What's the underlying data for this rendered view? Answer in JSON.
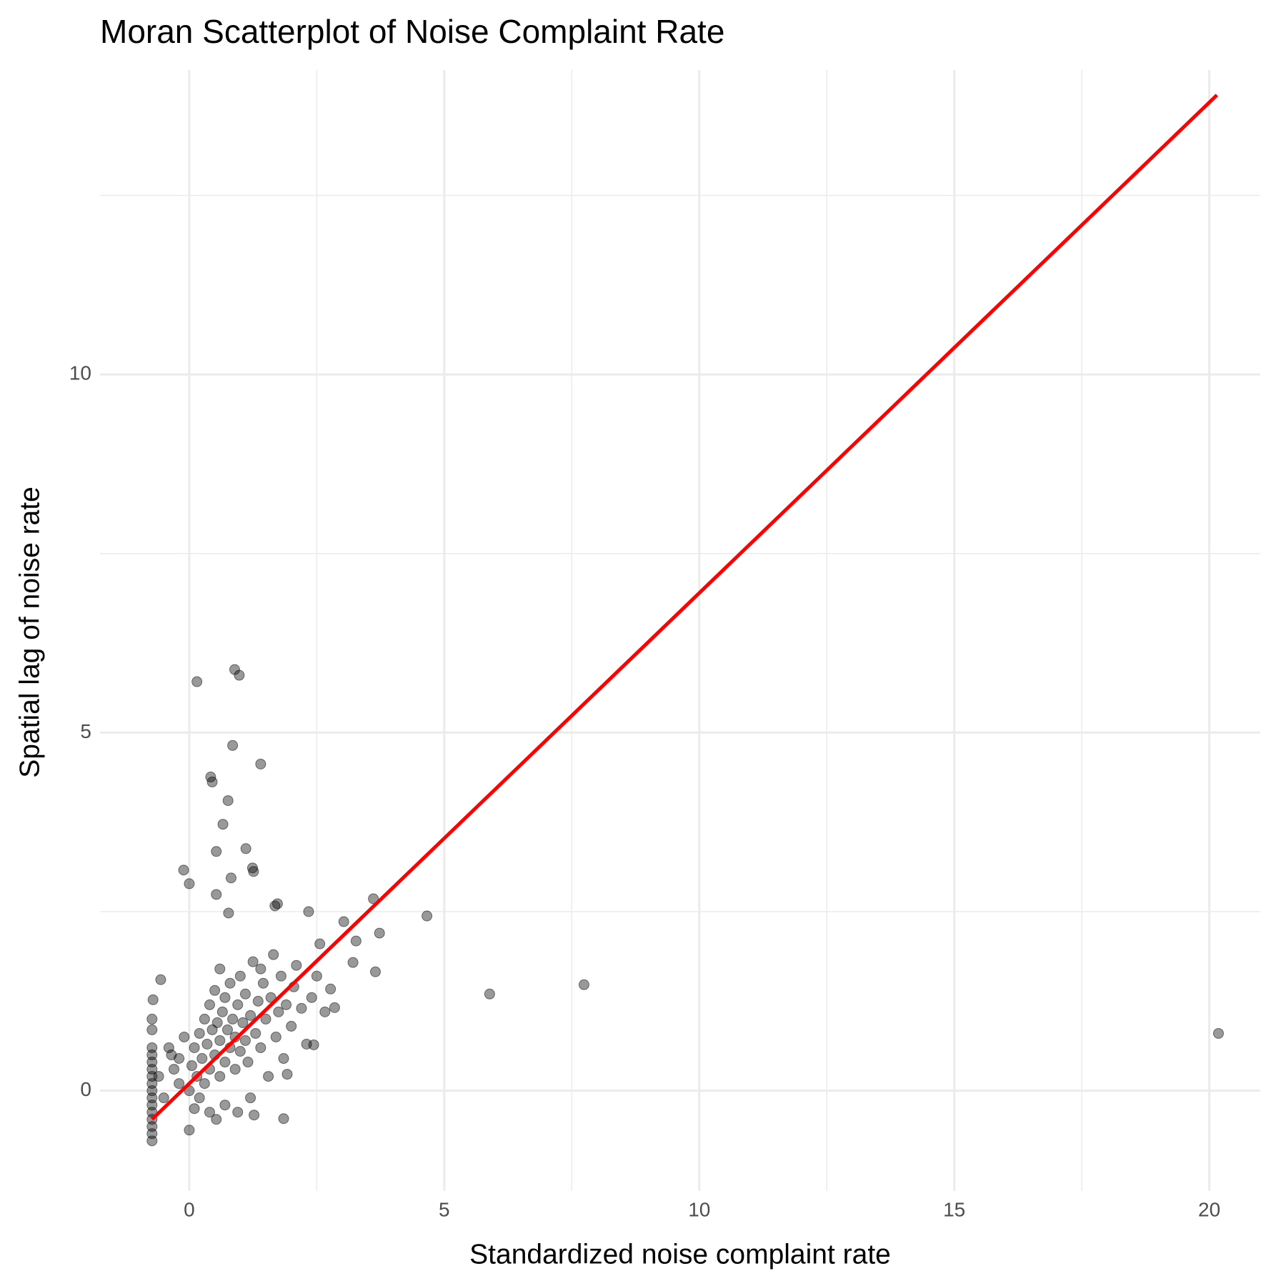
{
  "chart_data": {
    "type": "scatter",
    "title": "Moran Scatterplot of Noise Complaint Rate",
    "x_label": "Standardized noise complaint rate",
    "y_label": "Spatial lag of noise rate",
    "xlim": [
      -1.75,
      21.0
    ],
    "ylim": [
      -1.4,
      14.25
    ],
    "xticks": [
      0,
      5,
      10,
      15,
      20
    ],
    "yticks": [
      0,
      5,
      10
    ],
    "grid": true,
    "minor_grid": true,
    "color": "#000000",
    "x": [
      0.15,
      0.89,
      0.98,
      0.85,
      1.4,
      0.42,
      0.45,
      0.76,
      0.66,
      1.11,
      0.53,
      -0.11,
      1.24,
      1.26,
      0.0,
      0.82,
      0.53,
      3.61,
      1.73,
      1.68,
      2.34,
      4.66,
      0.77,
      3.03,
      3.73,
      3.27,
      2.56,
      3.21,
      3.65,
      7.74,
      5.89,
      20.18,
      -0.56,
      -0.71,
      0.0,
      1.85,
      2.77,
      2.85,
      2.66,
      2.44,
      1.92,
      1.27,
      0.53,
      0.05,
      0.1,
      0.15,
      0.2,
      0.25,
      0.3,
      0.3,
      0.35,
      0.4,
      0.4,
      0.45,
      0.5,
      0.5,
      0.55,
      0.6,
      0.6,
      0.65,
      0.7,
      0.7,
      0.75,
      0.8,
      0.8,
      0.85,
      0.9,
      0.9,
      0.95,
      1.0,
      1.0,
      1.05,
      1.1,
      1.1,
      1.15,
      1.2,
      1.25,
      1.3,
      1.35,
      1.4,
      1.45,
      1.5,
      1.55,
      1.6,
      1.65,
      1.7,
      1.75,
      1.8,
      1.85,
      1.9,
      2.0,
      2.05,
      2.1,
      2.2,
      2.3,
      2.4,
      2.5,
      -0.3,
      -0.2,
      -0.4,
      -0.1,
      -0.5,
      -0.35,
      0.0,
      0.1,
      0.2,
      0.4,
      0.7,
      0.95,
      1.2,
      -0.6,
      -0.2,
      0.6,
      1.4,
      -0.73,
      -0.73,
      -0.73,
      -0.73,
      -0.73,
      -0.73,
      -0.73,
      -0.73,
      -0.73,
      -0.73,
      -0.73,
      -0.73,
      -0.73,
      -0.73,
      -0.73,
      -0.73
    ],
    "y": [
      5.71,
      5.88,
      5.8,
      4.82,
      4.56,
      4.38,
      4.31,
      4.05,
      3.72,
      3.38,
      3.34,
      3.08,
      3.11,
      3.06,
      2.89,
      2.97,
      2.74,
      2.68,
      2.61,
      2.58,
      2.5,
      2.44,
      2.48,
      2.36,
      2.2,
      2.09,
      2.05,
      1.79,
      1.66,
      1.48,
      1.35,
      0.8,
      1.55,
      1.27,
      -0.55,
      -0.39,
      1.42,
      1.16,
      1.1,
      0.64,
      0.23,
      -0.34,
      -0.4,
      0.35,
      0.6,
      0.2,
      0.8,
      0.45,
      0.1,
      1.0,
      0.65,
      0.3,
      1.2,
      0.85,
      0.5,
      1.4,
      0.95,
      0.2,
      0.7,
      1.1,
      0.4,
      1.3,
      0.85,
      0.6,
      1.5,
      1.0,
      0.3,
      0.75,
      1.2,
      0.55,
      1.6,
      0.95,
      0.7,
      1.35,
      0.4,
      1.05,
      1.8,
      0.8,
      1.25,
      0.6,
      1.5,
      1.0,
      0.2,
      1.3,
      1.9,
      0.75,
      1.1,
      1.6,
      0.45,
      1.2,
      0.9,
      1.45,
      1.75,
      1.15,
      0.65,
      1.3,
      1.6,
      0.3,
      0.1,
      0.6,
      0.75,
      -0.1,
      0.5,
      0.0,
      -0.25,
      -0.1,
      -0.3,
      -0.2,
      -0.3,
      -0.1,
      0.2,
      0.45,
      1.7,
      1.7,
      -0.7,
      -0.6,
      -0.5,
      -0.4,
      -0.3,
      -0.2,
      -0.1,
      0,
      0.1,
      0.2,
      0.3,
      0.4,
      0.5,
      0.6,
      0.85,
      1.0
    ],
    "regression_line": {
      "x": [
        -0.73,
        20.15
      ],
      "y": [
        -0.4,
        13.9
      ],
      "color": "#ff0000"
    }
  }
}
